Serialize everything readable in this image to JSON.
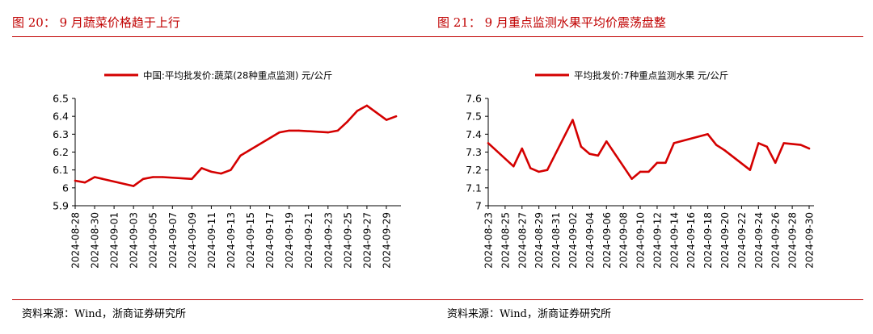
{
  "colors": {
    "accent": "#c00000",
    "series": "#d40000"
  },
  "panels": {
    "left": {
      "figure_title": "图 20：  9 月蔬菜价格趋于上行",
      "source": "资料来源：Wind，浙商证券研究所"
    },
    "right": {
      "figure_title": "图 21：  9 月重点监测水果平均价震荡盘整",
      "source": "资料来源：Wind，浙商证券研究所"
    }
  },
  "chart_data": [
    {
      "type": "line",
      "legend": "中国:平均批发价:蔬菜(28种重点监测) 元/公斤",
      "legend_position": "top",
      "ylim": [
        5.9,
        6.5
      ],
      "yticks": [
        5.9,
        6,
        6.1,
        6.2,
        6.3,
        6.4,
        6.5
      ],
      "ytick_labels": [
        "5.9",
        "6",
        "6.1",
        "6.2",
        "6.3",
        "6.4",
        "6.5"
      ],
      "xticks": [
        "2024-08-28",
        "2024-08-30",
        "2024-09-01",
        "2024-09-03",
        "2024-09-05",
        "2024-09-07",
        "2024-09-09",
        "2024-09-11",
        "2024-09-13",
        "2024-09-15",
        "2024-09-17",
        "2024-09-19",
        "2024-09-21",
        "2024-09-23",
        "2024-09-25",
        "2024-09-27",
        "2024-09-29"
      ],
      "series": [
        {
          "name": "中国:平均批发价:蔬菜(28种重点监测)",
          "x": [
            "2024-08-28",
            "2024-08-29",
            "2024-08-30",
            "2024-09-03",
            "2024-09-04",
            "2024-09-05",
            "2024-09-06",
            "2024-09-09",
            "2024-09-10",
            "2024-09-11",
            "2024-09-12",
            "2024-09-13",
            "2024-09-14",
            "2024-09-18",
            "2024-09-19",
            "2024-09-20",
            "2024-09-23",
            "2024-09-24",
            "2024-09-25",
            "2024-09-26",
            "2024-09-27",
            "2024-09-29",
            "2024-09-30"
          ],
          "values": [
            6.04,
            6.03,
            6.06,
            6.01,
            6.05,
            6.06,
            6.06,
            6.05,
            6.11,
            6.09,
            6.08,
            6.1,
            6.18,
            6.31,
            6.32,
            6.32,
            6.31,
            6.32,
            6.37,
            6.43,
            6.46,
            6.38,
            6.4
          ]
        }
      ]
    },
    {
      "type": "line",
      "legend": "平均批发价:7种重点监测水果 元/公斤",
      "legend_position": "top",
      "ylim": [
        7.0,
        7.6
      ],
      "yticks": [
        7.0,
        7.1,
        7.2,
        7.3,
        7.4,
        7.5,
        7.6
      ],
      "ytick_labels": [
        "7",
        "7.1",
        "7.2",
        "7.3",
        "7.4",
        "7.5",
        "7.6"
      ],
      "xticks": [
        "2024-08-23",
        "2024-08-25",
        "2024-08-27",
        "2024-08-29",
        "2024-08-31",
        "2024-09-02",
        "2024-09-04",
        "2024-09-06",
        "2024-09-08",
        "2024-09-10",
        "2024-09-12",
        "2024-09-14",
        "2024-09-16",
        "2024-09-18",
        "2024-09-20",
        "2024-09-22",
        "2024-09-24",
        "2024-09-26",
        "2024-09-28",
        "2024-09-30"
      ],
      "series": [
        {
          "name": "平均批发价:7种重点监测水果",
          "x": [
            "2024-08-23",
            "2024-08-26",
            "2024-08-27",
            "2024-08-28",
            "2024-08-29",
            "2024-08-30",
            "2024-09-02",
            "2024-09-03",
            "2024-09-04",
            "2024-09-05",
            "2024-09-06",
            "2024-09-09",
            "2024-09-10",
            "2024-09-11",
            "2024-09-12",
            "2024-09-13",
            "2024-09-14",
            "2024-09-18",
            "2024-09-19",
            "2024-09-20",
            "2024-09-23",
            "2024-09-24",
            "2024-09-25",
            "2024-09-26",
            "2024-09-27",
            "2024-09-29",
            "2024-09-30"
          ],
          "values": [
            7.35,
            7.22,
            7.32,
            7.21,
            7.19,
            7.2,
            7.48,
            7.33,
            7.29,
            7.28,
            7.36,
            7.15,
            7.19,
            7.19,
            7.24,
            7.24,
            7.35,
            7.4,
            7.34,
            7.31,
            7.2,
            7.35,
            7.33,
            7.24,
            7.35,
            7.34,
            7.32
          ]
        }
      ]
    }
  ]
}
